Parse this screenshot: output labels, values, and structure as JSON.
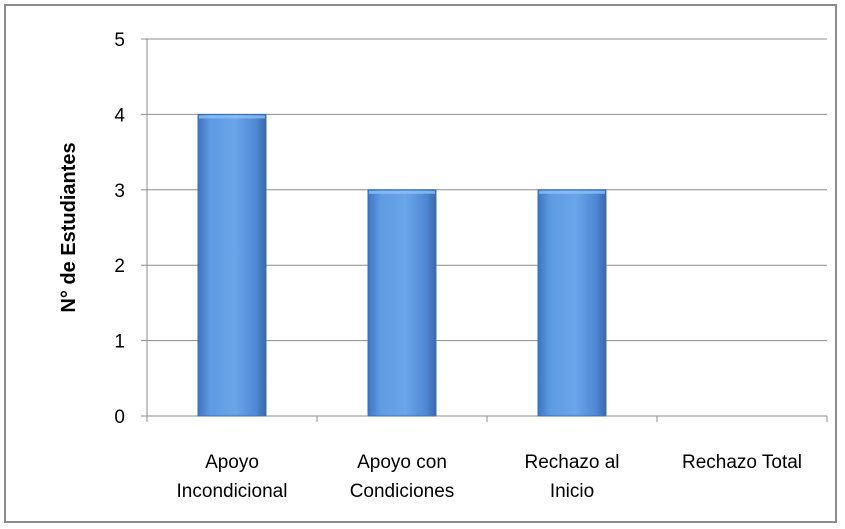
{
  "chart_data": {
    "type": "bar",
    "categories": [
      [
        "Apoyo",
        "Incondicional"
      ],
      [
        "Apoyo con",
        "Condiciones"
      ],
      [
        "Rechazo al",
        "Inicio"
      ],
      [
        "Rechazo Total"
      ]
    ],
    "values": [
      4,
      3,
      3,
      0
    ],
    "title": "",
    "xlabel": "",
    "ylabel": "N° de Estudiantes",
    "ylim": [
      0,
      5
    ],
    "yticks": [
      "0",
      "1",
      "2",
      "3",
      "4",
      "5"
    ],
    "grid": true,
    "colors": {
      "bar": "#5b96dd",
      "bar_edge": "#3a6fb5",
      "grid": "#8c8c8c",
      "axis": "#8c8c8c"
    }
  }
}
